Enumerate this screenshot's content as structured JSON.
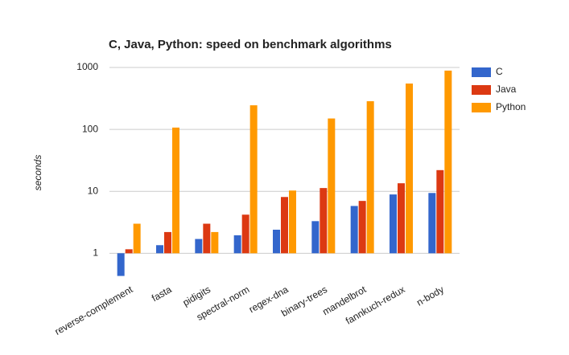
{
  "chart_data": {
    "type": "bar",
    "title": "C, Java, Python: speed on benchmark algorithms",
    "y_label": "seconds",
    "categories": [
      "reverse-complement",
      "fasta",
      "pidigits",
      "spectral-norm",
      "regex-dna",
      "binary-trees",
      "mandelbrot",
      "fannkuch-redux",
      "n-body"
    ],
    "series": [
      {
        "name": "C",
        "color": "#3366cc",
        "values": [
          0.43,
          1.35,
          1.7,
          1.95,
          2.4,
          3.3,
          5.8,
          8.9,
          9.4
        ]
      },
      {
        "name": "Java",
        "color": "#dc3912",
        "values": [
          1.16,
          2.2,
          3.0,
          4.2,
          8.1,
          11.3,
          7.0,
          13.5,
          22
        ]
      },
      {
        "name": "Python",
        "color": "#ff9900",
        "values": [
          3.0,
          107,
          2.2,
          245,
          10.3,
          150,
          285,
          550,
          890
        ]
      }
    ],
    "ylim": [
      0.4,
      1000
    ],
    "yticks": [
      1,
      10,
      100,
      1000
    ],
    "log_scale": true,
    "grid": true,
    "legend": "right"
  }
}
